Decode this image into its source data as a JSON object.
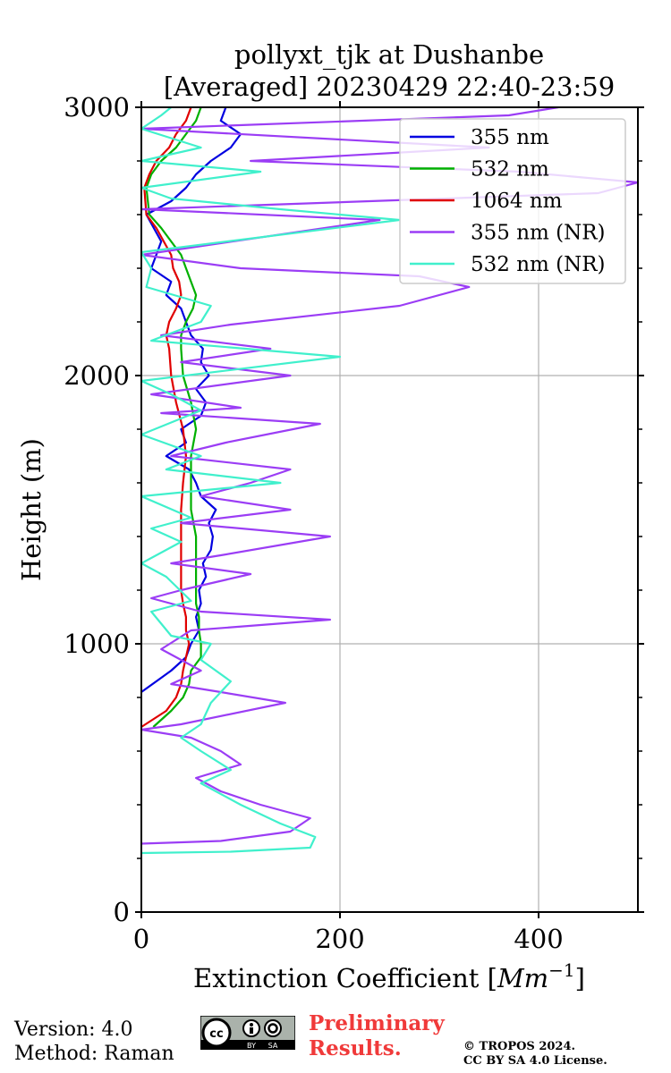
{
  "chart_data": {
    "type": "line",
    "title_line1": "pollyxt_tjk at Dushanbe",
    "title_line2": "[Averaged] 20230429 22:40-23:59",
    "xlabel": "Extinction Coefficient [",
    "xlabel_unit": "Mm",
    "xlabel_exp": "−1",
    "xlabel_close": "]",
    "ylabel": "Height (m)",
    "xlim": [
      0,
      500
    ],
    "ylim": [
      0,
      3000
    ],
    "x_ticks": [
      0,
      200,
      400
    ],
    "y_ticks": [
      0,
      1000,
      2000,
      3000
    ],
    "grid": true,
    "legend_position": "top-right",
    "series": [
      {
        "name": "355 nm",
        "color": "#0000e0",
        "points": [
          [
            0,
            820
          ],
          [
            15,
            860
          ],
          [
            30,
            900
          ],
          [
            45,
            950
          ],
          [
            50,
            1000
          ],
          [
            58,
            1050
          ],
          [
            55,
            1100
          ],
          [
            60,
            1150
          ],
          [
            58,
            1200
          ],
          [
            65,
            1250
          ],
          [
            62,
            1300
          ],
          [
            70,
            1350
          ],
          [
            72,
            1400
          ],
          [
            68,
            1450
          ],
          [
            75,
            1500
          ],
          [
            60,
            1550
          ],
          [
            55,
            1600
          ],
          [
            48,
            1650
          ],
          [
            25,
            1700
          ],
          [
            45,
            1750
          ],
          [
            40,
            1800
          ],
          [
            60,
            1850
          ],
          [
            65,
            1900
          ],
          [
            55,
            1950
          ],
          [
            68,
            2000
          ],
          [
            60,
            2050
          ],
          [
            62,
            2100
          ],
          [
            50,
            2150
          ],
          [
            45,
            2200
          ],
          [
            40,
            2250
          ],
          [
            25,
            2300
          ],
          [
            30,
            2350
          ],
          [
            10,
            2400
          ],
          [
            15,
            2450
          ],
          [
            20,
            2500
          ],
          [
            5,
            2600
          ],
          [
            30,
            2650
          ],
          [
            45,
            2700
          ],
          [
            55,
            2750
          ],
          [
            70,
            2800
          ],
          [
            90,
            2850
          ],
          [
            100,
            2900
          ],
          [
            80,
            2950
          ],
          [
            85,
            3000
          ]
        ]
      },
      {
        "name": "532 nm",
        "color": "#00b000",
        "points": [
          [
            12,
            690
          ],
          [
            30,
            750
          ],
          [
            42,
            800
          ],
          [
            48,
            850
          ],
          [
            50,
            900
          ],
          [
            60,
            950
          ],
          [
            60,
            1000
          ],
          [
            58,
            1050
          ],
          [
            58,
            1100
          ],
          [
            55,
            1150
          ],
          [
            55,
            1200
          ],
          [
            55,
            1300
          ],
          [
            55,
            1400
          ],
          [
            50,
            1500
          ],
          [
            50,
            1600
          ],
          [
            50,
            1700
          ],
          [
            55,
            1800
          ],
          [
            50,
            1900
          ],
          [
            42,
            2000
          ],
          [
            40,
            2100
          ],
          [
            40,
            2150
          ],
          [
            45,
            2200
          ],
          [
            52,
            2250
          ],
          [
            55,
            2300
          ],
          [
            50,
            2350
          ],
          [
            45,
            2400
          ],
          [
            40,
            2450
          ],
          [
            20,
            2550
          ],
          [
            8,
            2600
          ],
          [
            5,
            2700
          ],
          [
            10,
            2750
          ],
          [
            20,
            2800
          ],
          [
            35,
            2850
          ],
          [
            45,
            2900
          ],
          [
            55,
            2950
          ],
          [
            60,
            3000
          ]
        ]
      },
      {
        "name": "1064 nm",
        "color": "#e00000",
        "points": [
          [
            0,
            690
          ],
          [
            25,
            750
          ],
          [
            35,
            800
          ],
          [
            40,
            850
          ],
          [
            42,
            900
          ],
          [
            45,
            950
          ],
          [
            48,
            1000
          ],
          [
            45,
            1050
          ],
          [
            45,
            1100
          ],
          [
            42,
            1150
          ],
          [
            40,
            1200
          ],
          [
            40,
            1300
          ],
          [
            40,
            1400
          ],
          [
            40,
            1500
          ],
          [
            42,
            1600
          ],
          [
            45,
            1700
          ],
          [
            42,
            1800
          ],
          [
            35,
            1900
          ],
          [
            30,
            2000
          ],
          [
            28,
            2100
          ],
          [
            25,
            2150
          ],
          [
            28,
            2200
          ],
          [
            35,
            2250
          ],
          [
            40,
            2300
          ],
          [
            38,
            2350
          ],
          [
            32,
            2400
          ],
          [
            30,
            2450
          ],
          [
            15,
            2550
          ],
          [
            5,
            2600
          ],
          [
            3,
            2700
          ],
          [
            8,
            2750
          ],
          [
            15,
            2800
          ],
          [
            28,
            2850
          ],
          [
            35,
            2900
          ],
          [
            45,
            2950
          ],
          [
            50,
            3000
          ]
        ]
      },
      {
        "name": "355 nm (NR)",
        "color": "#9b3df5",
        "points": [
          [
            0,
            255
          ],
          [
            80,
            265
          ],
          [
            150,
            300
          ],
          [
            170,
            350
          ],
          [
            120,
            400
          ],
          [
            80,
            450
          ],
          [
            55,
            500
          ],
          [
            100,
            550
          ],
          [
            80,
            600
          ],
          [
            50,
            650
          ],
          [
            0,
            680
          ],
          [
            40,
            700
          ],
          [
            145,
            780
          ],
          [
            80,
            820
          ],
          [
            30,
            850
          ],
          [
            60,
            900
          ],
          [
            20,
            980
          ],
          [
            50,
            1050
          ],
          [
            190,
            1090
          ],
          [
            60,
            1120
          ],
          [
            10,
            1170
          ],
          [
            40,
            1200
          ],
          [
            110,
            1260
          ],
          [
            30,
            1300
          ],
          [
            80,
            1330
          ],
          [
            190,
            1400
          ],
          [
            40,
            1450
          ],
          [
            150,
            1500
          ],
          [
            60,
            1550
          ],
          [
            110,
            1600
          ],
          [
            150,
            1650
          ],
          [
            30,
            1700
          ],
          [
            85,
            1750
          ],
          [
            180,
            1820
          ],
          [
            20,
            1860
          ],
          [
            100,
            1880
          ],
          [
            10,
            1930
          ],
          [
            150,
            2000
          ],
          [
            40,
            2050
          ],
          [
            130,
            2100
          ],
          [
            20,
            2150
          ],
          [
            90,
            2190
          ],
          [
            260,
            2260
          ],
          [
            330,
            2330
          ],
          [
            280,
            2370
          ],
          [
            100,
            2400
          ],
          [
            0,
            2450
          ],
          [
            240,
            2580
          ],
          [
            0,
            2620
          ],
          [
            460,
            2680
          ],
          [
            500,
            2720
          ],
          [
            380,
            2760
          ],
          [
            110,
            2800
          ],
          [
            350,
            2850
          ],
          [
            0,
            2920
          ],
          [
            370,
            2970
          ],
          [
            420,
            3000
          ]
        ]
      },
      {
        "name": "532 nm (NR)",
        "color": "#40f0cc",
        "points": [
          [
            0,
            220
          ],
          [
            90,
            225
          ],
          [
            170,
            240
          ],
          [
            175,
            280
          ],
          [
            140,
            330
          ],
          [
            100,
            400
          ],
          [
            60,
            480
          ],
          [
            90,
            530
          ],
          [
            60,
            600
          ],
          [
            40,
            650
          ],
          [
            60,
            700
          ],
          [
            70,
            780
          ],
          [
            90,
            860
          ],
          [
            60,
            940
          ],
          [
            70,
            1000
          ],
          [
            30,
            1030
          ],
          [
            10,
            1120
          ],
          [
            50,
            1160
          ],
          [
            25,
            1250
          ],
          [
            0,
            1300
          ],
          [
            40,
            1380
          ],
          [
            10,
            1430
          ],
          [
            50,
            1470
          ],
          [
            0,
            1550
          ],
          [
            140,
            1600
          ],
          [
            25,
            1650
          ],
          [
            60,
            1700
          ],
          [
            0,
            1780
          ],
          [
            60,
            1870
          ],
          [
            30,
            1930
          ],
          [
            0,
            1980
          ],
          [
            200,
            2070
          ],
          [
            10,
            2130
          ],
          [
            60,
            2200
          ],
          [
            70,
            2260
          ],
          [
            5,
            2330
          ],
          [
            10,
            2400
          ],
          [
            0,
            2460
          ],
          [
            260,
            2580
          ],
          [
            140,
            2620
          ],
          [
            30,
            2660
          ],
          [
            0,
            2700
          ],
          [
            120,
            2760
          ],
          [
            0,
            2800
          ],
          [
            60,
            2850
          ],
          [
            0,
            2920
          ],
          [
            20,
            2970
          ],
          [
            30,
            3000
          ]
        ]
      }
    ]
  },
  "footer": {
    "version": "Version: 4.0",
    "method": "Method: Raman",
    "preliminary_line1": "Preliminary",
    "preliminary_line2": "Results.",
    "copyright_line1": "© TROPOS 2024.",
    "copyright_line2": "CC BY SA 4.0 License.",
    "license_badge_text": "cc",
    "license_by": "BY",
    "license_sa": "SA"
  }
}
